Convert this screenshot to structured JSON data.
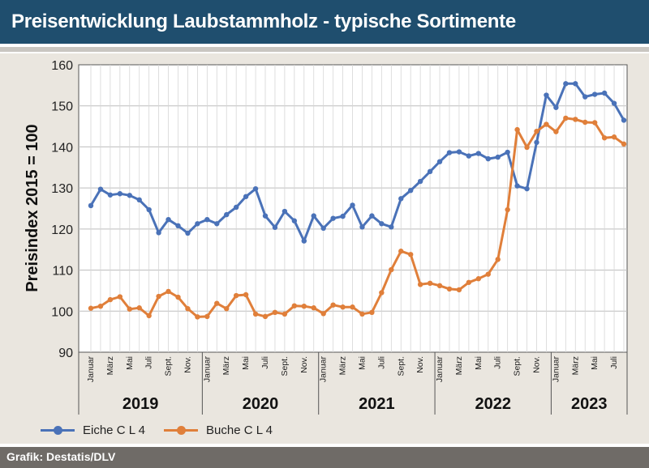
{
  "header": {
    "title": "Preisentwicklung Laubstammholz - typische Sortimente"
  },
  "footer": {
    "source": "Grafik: Destatis/DLV"
  },
  "colors": {
    "title_bar": "#1f4e6e",
    "panel": "#eae6df",
    "footer": "#6f6b67",
    "eiche": "#4a72b8",
    "buche": "#e07f3a"
  },
  "chart_data": {
    "type": "line",
    "ylabel": "Preisindex 2015 = 100",
    "ylim": [
      90,
      160
    ],
    "yticks": [
      90,
      100,
      110,
      120,
      130,
      140,
      150,
      160
    ],
    "grid": true,
    "legend_position": "bottom-left",
    "x_month_labels": [
      "Januar",
      "",
      "März",
      "",
      "Mai",
      "",
      "Juli",
      "",
      "Sept.",
      "",
      "Nov.",
      ""
    ],
    "years": [
      "2019",
      "2020",
      "2021",
      "2022",
      "2023"
    ],
    "months_in_last_year": 8,
    "series": [
      {
        "name": "Eiche C L 4",
        "color": "#4a72b8",
        "values": [
          125.7,
          129.7,
          128.3,
          128.6,
          128.2,
          127.1,
          124.7,
          119.1,
          122.3,
          120.8,
          119.0,
          121.3,
          122.3,
          121.3,
          123.5,
          125.3,
          127.9,
          129.8,
          123.2,
          120.4,
          124.3,
          122.0,
          117.1,
          123.2,
          120.2,
          122.6,
          123.1,
          125.8,
          120.5,
          123.2,
          121.3,
          120.5,
          127.4,
          129.4,
          131.6,
          134.0,
          136.4,
          138.6,
          138.8,
          137.8,
          138.4,
          137.1,
          137.5,
          138.7,
          130.5,
          129.8,
          141.1,
          152.6,
          149.6,
          155.4,
          155.4,
          152.2,
          152.8,
          153.1,
          150.6,
          146.5
        ]
      },
      {
        "name": "Buche C L 4",
        "color": "#e07f3a",
        "values": [
          100.7,
          101.2,
          102.8,
          103.5,
          100.5,
          100.8,
          98.9,
          103.6,
          104.8,
          103.4,
          100.6,
          98.6,
          98.7,
          101.9,
          100.6,
          103.8,
          104.0,
          99.3,
          98.7,
          99.7,
          99.3,
          101.3,
          101.2,
          100.8,
          99.4,
          101.5,
          101.0,
          101.0,
          99.3,
          99.7,
          104.5,
          110.1,
          114.6,
          113.8,
          106.5,
          106.8,
          106.2,
          105.4,
          105.2,
          107.0,
          107.9,
          109.0,
          112.6,
          124.7,
          144.2,
          139.9,
          143.8,
          145.5,
          143.7,
          147.0,
          146.7,
          146.0,
          145.9,
          142.2,
          142.4,
          140.7
        ]
      }
    ]
  }
}
